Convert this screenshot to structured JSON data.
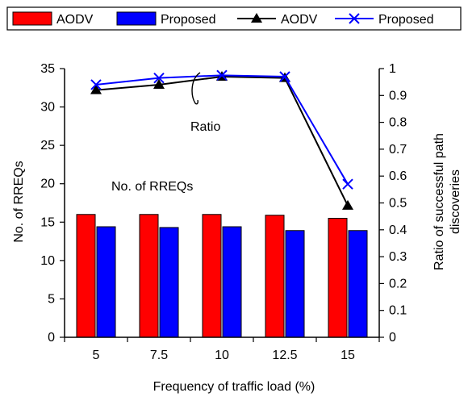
{
  "chart_data": {
    "type": "bar+line",
    "categories": [
      "5",
      "7.5",
      "10",
      "12.5",
      "15"
    ],
    "xlabel": "Frequency of traffic load (%)",
    "ylabel_left": "No. of RREQs",
    "ylabel_right": "Ratio of successful path discoveries",
    "ylabel_right_lines": [
      "Ratio of successful path",
      "discoveries"
    ],
    "ylim_left": [
      0,
      35
    ],
    "yticks_left": [
      "0",
      "5",
      "10",
      "15",
      "20",
      "25",
      "30",
      "35"
    ],
    "ylim_right": [
      0,
      1
    ],
    "yticks_right": [
      "0",
      "0.1",
      "0.2",
      "0.3",
      "0.4",
      "0.5",
      "0.6",
      "0.7",
      "0.8",
      "0.9",
      "1"
    ],
    "bar_series": [
      {
        "name": "AODV",
        "color": "#ff0000",
        "values": [
          16.0,
          16.0,
          16.0,
          15.9,
          15.5
        ]
      },
      {
        "name": "Proposed",
        "color": "#0000ff",
        "values": [
          14.4,
          14.3,
          14.4,
          13.9,
          13.9
        ]
      }
    ],
    "line_series": [
      {
        "name": "AODV",
        "color": "#000000",
        "marker": "triangle",
        "values": [
          0.92,
          0.94,
          0.97,
          0.965,
          0.49
        ]
      },
      {
        "name": "Proposed",
        "color": "#0000ff",
        "marker": "x",
        "values": [
          0.94,
          0.965,
          0.975,
          0.97,
          0.57
        ]
      }
    ],
    "annotations": {
      "ratio": "Ratio",
      "rreqs": "No. of RREQs"
    },
    "grid": false,
    "legend_position": "top"
  }
}
